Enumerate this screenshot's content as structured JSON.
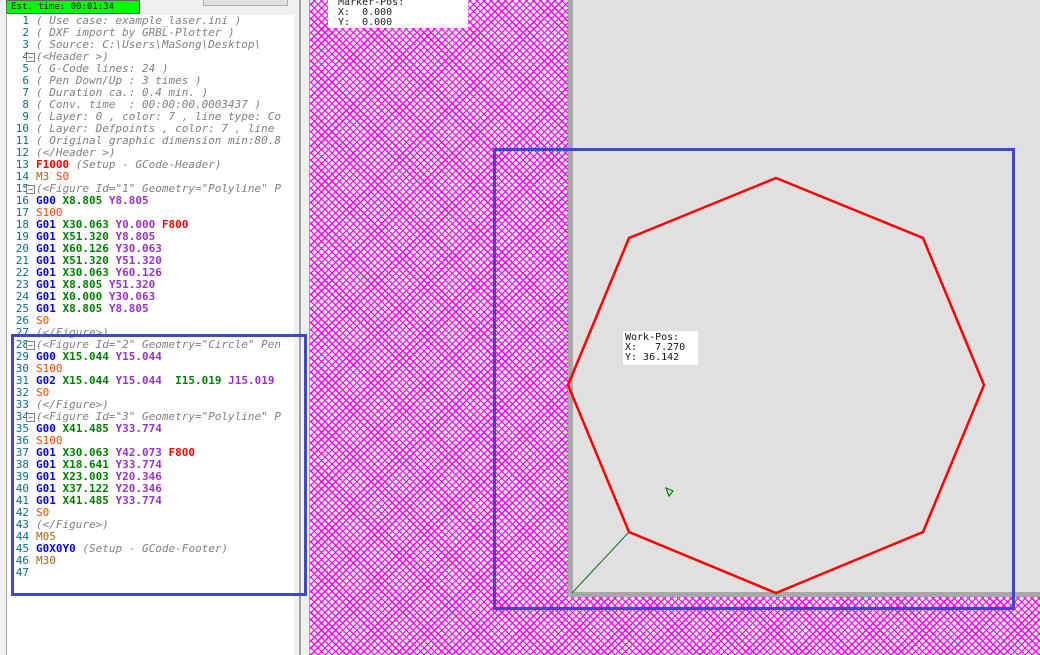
{
  "status": {
    "text": "Est. time: 00:01:34",
    "color": "#00ff00"
  },
  "editor": {
    "lines": [
      [
        [
          "( Use case: example_laser.ini )",
          "c"
        ]
      ],
      [
        [
          "( DXF import by GRBL-Plotter )",
          "c"
        ]
      ],
      [
        [
          "( Source: C:\\Users\\MaSong\\Desktop\\",
          "c"
        ]
      ],
      [
        [
          "(<Header >)",
          "c"
        ]
      ],
      [
        [
          "( G-Code lines: 24 )",
          "c"
        ]
      ],
      [
        [
          "( Pen Down/Up : 3 times )",
          "c"
        ]
      ],
      [
        [
          "( Duration ca.: 0.4 min. )",
          "c"
        ]
      ],
      [
        [
          "( Conv. time  : 00:00:00.0003437 )",
          "c"
        ]
      ],
      [
        [
          "( Layer: 0 , color: 7 , line type: Co",
          "c"
        ]
      ],
      [
        [
          "( Layer: Defpoints , color: 7 , line ",
          "c"
        ]
      ],
      [
        [
          "( Original graphic dimension min:80.8",
          "c"
        ]
      ],
      [
        [
          "(</Header >)",
          "c"
        ]
      ],
      [
        [
          "F1000",
          "f"
        ],
        [
          " ",
          ""
        ],
        [
          "(Setup - GCode-Header)",
          "c"
        ]
      ],
      [
        [
          "M3",
          "m"
        ],
        [
          " ",
          ""
        ],
        [
          "S0",
          "s"
        ]
      ],
      [
        [
          "(<Figure Id=\"1\" Geometry=\"Polyline\" P",
          "c"
        ]
      ],
      [
        [
          "G00",
          "g"
        ],
        [
          " ",
          ""
        ],
        [
          "X8.805",
          "x"
        ],
        [
          " ",
          ""
        ],
        [
          "Y8.805",
          "y"
        ]
      ],
      [
        [
          "S100",
          "s"
        ]
      ],
      [
        [
          "G01",
          "g"
        ],
        [
          " ",
          ""
        ],
        [
          "X30.063",
          "x"
        ],
        [
          " ",
          ""
        ],
        [
          "Y0.000",
          "y"
        ],
        [
          " ",
          ""
        ],
        [
          "F800",
          "f"
        ]
      ],
      [
        [
          "G01",
          "g"
        ],
        [
          " ",
          ""
        ],
        [
          "X51.320",
          "x"
        ],
        [
          " ",
          ""
        ],
        [
          "Y8.805",
          "y"
        ]
      ],
      [
        [
          "G01",
          "g"
        ],
        [
          " ",
          ""
        ],
        [
          "X60.126",
          "x"
        ],
        [
          " ",
          ""
        ],
        [
          "Y30.063",
          "y"
        ]
      ],
      [
        [
          "G01",
          "g"
        ],
        [
          " ",
          ""
        ],
        [
          "X51.320",
          "x"
        ],
        [
          " ",
          ""
        ],
        [
          "Y51.320",
          "y"
        ]
      ],
      [
        [
          "G01",
          "g"
        ],
        [
          " ",
          ""
        ],
        [
          "X30.063",
          "x"
        ],
        [
          " ",
          ""
        ],
        [
          "Y60.126",
          "y"
        ]
      ],
      [
        [
          "G01",
          "g"
        ],
        [
          " ",
          ""
        ],
        [
          "X8.805",
          "x"
        ],
        [
          " ",
          ""
        ],
        [
          "Y51.320",
          "y"
        ]
      ],
      [
        [
          "G01",
          "g"
        ],
        [
          " ",
          ""
        ],
        [
          "X0.000",
          "x"
        ],
        [
          " ",
          ""
        ],
        [
          "Y30.063",
          "y"
        ]
      ],
      [
        [
          "G01",
          "g"
        ],
        [
          " ",
          ""
        ],
        [
          "X8.805",
          "x"
        ],
        [
          " ",
          ""
        ],
        [
          "Y8.805",
          "y"
        ]
      ],
      [
        [
          "S0",
          "s"
        ]
      ],
      [
        [
          "(</Figure>)",
          "c"
        ]
      ],
      [
        [
          "(<Figure Id=\"2\" Geometry=\"Circle\" Pen",
          "c"
        ]
      ],
      [
        [
          "G00",
          "g"
        ],
        [
          " ",
          ""
        ],
        [
          "X15.044",
          "x"
        ],
        [
          " ",
          ""
        ],
        [
          "Y15.044",
          "y"
        ]
      ],
      [
        [
          "S100",
          "s"
        ]
      ],
      [
        [
          "G02",
          "g"
        ],
        [
          " ",
          ""
        ],
        [
          "X15.044",
          "x"
        ],
        [
          " ",
          ""
        ],
        [
          "Y15.044",
          "y"
        ],
        [
          "  ",
          ""
        ],
        [
          "I15.019",
          "x"
        ],
        [
          " ",
          ""
        ],
        [
          "J15.019",
          "y"
        ]
      ],
      [
        [
          "S0",
          "s"
        ]
      ],
      [
        [
          "(</Figure>)",
          "c"
        ]
      ],
      [
        [
          "(<Figure Id=\"3\" Geometry=\"Polyline\" P",
          "c"
        ]
      ],
      [
        [
          "G00",
          "g"
        ],
        [
          " ",
          ""
        ],
        [
          "X41.485",
          "x"
        ],
        [
          " ",
          ""
        ],
        [
          "Y33.774",
          "y"
        ]
      ],
      [
        [
          "S100",
          "s"
        ]
      ],
      [
        [
          "G01",
          "g"
        ],
        [
          " ",
          ""
        ],
        [
          "X30.063",
          "x"
        ],
        [
          " ",
          ""
        ],
        [
          "Y42.073",
          "y"
        ],
        [
          " ",
          ""
        ],
        [
          "F800",
          "f"
        ]
      ],
      [
        [
          "G01",
          "g"
        ],
        [
          " ",
          ""
        ],
        [
          "X18.641",
          "x"
        ],
        [
          " ",
          ""
        ],
        [
          "Y33.774",
          "y"
        ]
      ],
      [
        [
          "G01",
          "g"
        ],
        [
          " ",
          ""
        ],
        [
          "X23.003",
          "x"
        ],
        [
          " ",
          ""
        ],
        [
          "Y20.346",
          "y"
        ]
      ],
      [
        [
          "G01",
          "g"
        ],
        [
          " ",
          ""
        ],
        [
          "X37.122",
          "x"
        ],
        [
          " ",
          ""
        ],
        [
          "Y20.346",
          "y"
        ]
      ],
      [
        [
          "G01",
          "g"
        ],
        [
          " ",
          ""
        ],
        [
          "X41.485",
          "x"
        ],
        [
          " ",
          ""
        ],
        [
          "Y33.774",
          "y"
        ]
      ],
      [
        [
          "S0",
          "s"
        ]
      ],
      [
        [
          "(</Figure>)",
          "c"
        ]
      ],
      [
        [
          "M05",
          "m"
        ]
      ],
      [
        [
          "G0X0Y0",
          "g"
        ],
        [
          " ",
          ""
        ],
        [
          "(Setup - GCode-Footer)",
          "c"
        ]
      ],
      [
        [
          "M30",
          "m"
        ]
      ],
      []
    ],
    "fold_lines": [
      4,
      15,
      28,
      34
    ]
  },
  "marker": {
    "title": "Marker-Pos:",
    "x": "X:  0.000",
    "y": "Y:  0.000"
  },
  "workpos": {
    "title": "Work-Pos:",
    "x": "X:   7.270",
    "y": "Y: 36.142"
  },
  "colors": {
    "path": "#ff0000",
    "selection": "#3f48cc",
    "hatch": "#ff00ff",
    "workarea": "#e0e0e0"
  }
}
